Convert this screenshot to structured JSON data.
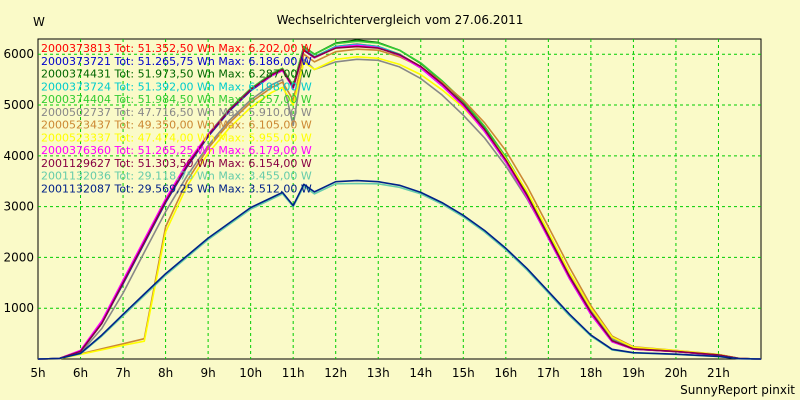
{
  "chart_data": {
    "type": "line",
    "title": "Wechselrichtervergleich vom 27.06.2011",
    "ylabel": "W",
    "footer": "SunnyReport pinxit",
    "ylim": [
      0,
      6300
    ],
    "xlim": [
      5,
      22
    ],
    "x_ticks": [
      5,
      6,
      7,
      8,
      9,
      10,
      11,
      12,
      13,
      14,
      15,
      16,
      17,
      18,
      19,
      20,
      21
    ],
    "x_tick_labels": [
      "5h",
      "6h",
      "7h",
      "8h",
      "9h",
      "10h",
      "11h",
      "12h",
      "13h",
      "14h",
      "15h",
      "16h",
      "17h",
      "18h",
      "19h",
      "20h",
      "21h"
    ],
    "y_ticks": [
      1000,
      2000,
      3000,
      4000,
      5000,
      6000
    ],
    "y_tick_labels": [
      "1000",
      "2000",
      "3000",
      "4000",
      "5000",
      "6000"
    ],
    "grid": true,
    "legend_position": "top-left",
    "series": [
      {
        "name": "2000373813 Tot: 51.352,50 Wh Max: 6.202,00 W",
        "color": "#ff0000",
        "x": [
          5,
          5.5,
          6,
          6.5,
          7,
          7.5,
          8,
          8.5,
          9,
          9.5,
          10,
          10.5,
          10.75,
          11,
          11.25,
          11.5,
          12,
          12.5,
          13,
          13.5,
          14,
          14.5,
          15,
          15.5,
          16,
          16.5,
          17,
          17.5,
          18,
          18.5,
          19,
          20,
          21,
          21.5,
          22
        ],
        "y": [
          0,
          10,
          150,
          700,
          1500,
          2300,
          3100,
          3800,
          4400,
          4900,
          5300,
          5600,
          5700,
          5350,
          6100,
          5950,
          6150,
          6200,
          6150,
          6000,
          5750,
          5400,
          5000,
          4500,
          3900,
          3200,
          2400,
          1600,
          900,
          350,
          200,
          150,
          80,
          10,
          0
        ]
      },
      {
        "name": "2000373721 Tot: 51.265,75 Wh Max: 6.186,00 W",
        "color": "#0000cc",
        "x": [
          5,
          5.5,
          6,
          6.5,
          7,
          7.5,
          8,
          8.5,
          9,
          9.5,
          10,
          10.5,
          10.75,
          11,
          11.25,
          11.5,
          12,
          12.5,
          13,
          13.5,
          14,
          14.5,
          15,
          15.5,
          16,
          16.5,
          17,
          17.5,
          18,
          18.5,
          19,
          20,
          21,
          21.5,
          22
        ],
        "y": [
          0,
          10,
          150,
          700,
          1480,
          2280,
          3080,
          3780,
          4380,
          4880,
          5280,
          5580,
          5680,
          5330,
          6080,
          5930,
          6130,
          6180,
          6130,
          5980,
          5730,
          5380,
          4980,
          4480,
          3880,
          3180,
          2380,
          1580,
          880,
          340,
          195,
          145,
          75,
          10,
          0
        ]
      },
      {
        "name": "2000374431 Tot: 51.973,50 Wh Max: 6.287,00 W",
        "color": "#006600",
        "x": [
          5,
          5.5,
          6,
          6.5,
          7,
          7.5,
          8,
          8.5,
          9,
          9.5,
          10,
          10.5,
          10.75,
          11,
          11.25,
          11.5,
          12,
          12.5,
          13,
          13.5,
          14,
          14.5,
          15,
          15.5,
          16,
          16.5,
          17,
          17.5,
          18,
          18.5,
          19,
          20,
          21,
          21.5,
          22
        ],
        "y": [
          0,
          10,
          160,
          720,
          1520,
          2320,
          3120,
          3820,
          4420,
          4920,
          5320,
          5620,
          5720,
          5380,
          6150,
          6000,
          6220,
          6280,
          6230,
          6080,
          5820,
          5470,
          5070,
          4570,
          3970,
          3270,
          2470,
          1650,
          930,
          370,
          210,
          160,
          85,
          10,
          0
        ]
      },
      {
        "name": "2000373724 Tot: 51.392,00 Wh Max: 6.198,00 W",
        "color": "#00cccc",
        "x": [
          5,
          5.5,
          6,
          6.5,
          7,
          7.5,
          8,
          8.5,
          9,
          9.5,
          10,
          10.5,
          10.75,
          11,
          11.25,
          11.5,
          12,
          12.5,
          13,
          13.5,
          14,
          14.5,
          15,
          15.5,
          16,
          16.5,
          17,
          17.5,
          18,
          18.5,
          19,
          20,
          21,
          21.5,
          22
        ],
        "y": [
          0,
          10,
          150,
          700,
          1500,
          2300,
          3100,
          3800,
          4400,
          4900,
          5300,
          5600,
          5700,
          5350,
          6100,
          5950,
          6150,
          6195,
          6150,
          6000,
          5750,
          5400,
          5000,
          4500,
          3900,
          3200,
          2400,
          1600,
          900,
          350,
          200,
          150,
          80,
          10,
          0
        ]
      },
      {
        "name": "2000374404 Tot: 51.984,50 Wh Max: 6.257,00 W",
        "color": "#33cc33",
        "x": [
          5,
          5.5,
          6,
          6.5,
          7,
          7.5,
          8,
          8.5,
          9,
          9.5,
          10,
          10.5,
          10.75,
          11,
          11.25,
          11.5,
          12,
          12.5,
          13,
          13.5,
          14,
          14.5,
          15,
          15.5,
          16,
          16.5,
          17,
          17.5,
          18,
          18.5,
          19,
          20,
          21,
          21.5,
          22
        ],
        "y": [
          0,
          10,
          160,
          720,
          1520,
          2320,
          3120,
          3820,
          4420,
          4920,
          5320,
          5620,
          5720,
          5380,
          6140,
          6000,
          6210,
          6255,
          6220,
          6080,
          5830,
          5480,
          5080,
          4580,
          3980,
          3280,
          2480,
          1660,
          940,
          380,
          215,
          160,
          85,
          10,
          0
        ]
      },
      {
        "name": "2000502737 Tot: 47.716,50 Wh Max: 5.910,00 W",
        "color": "#888888",
        "x": [
          5,
          5.5,
          6,
          6.5,
          7,
          7.5,
          8,
          8.5,
          9,
          9.5,
          10,
          10.5,
          10.75,
          11,
          11.25,
          11.5,
          12,
          12.5,
          13,
          13.5,
          14,
          14.5,
          15,
          15.5,
          16,
          16.5,
          17,
          17.5,
          18,
          18.5,
          19,
          20,
          21,
          21.5,
          22
        ],
        "y": [
          0,
          5,
          120,
          600,
          1300,
          2100,
          2900,
          3600,
          4200,
          4700,
          5100,
          5400,
          5500,
          4600,
          5900,
          5700,
          5850,
          5900,
          5880,
          5750,
          5520,
          5200,
          4800,
          4350,
          3800,
          3150,
          2400,
          1650,
          950,
          400,
          220,
          160,
          85,
          10,
          0
        ]
      },
      {
        "name": "2000523437 Tot: 49.350,00 Wh Max: 6.105,00 W",
        "color": "#cc8833",
        "x": [
          5,
          5.5,
          6,
          6.5,
          7,
          7.5,
          8,
          8.5,
          9,
          9.5,
          10,
          10.5,
          10.75,
          11,
          11.25,
          11.5,
          12,
          12.5,
          13,
          13.5,
          14,
          14.5,
          15,
          15.5,
          16,
          16.5,
          17,
          17.5,
          18,
          18.5,
          19,
          20,
          21,
          21.5,
          22
        ],
        "y": [
          0,
          5,
          100,
          200,
          300,
          400,
          2600,
          3500,
          4150,
          4650,
          5050,
          5350,
          5450,
          5100,
          6000,
          5850,
          6050,
          6100,
          6080,
          5950,
          5750,
          5450,
          5100,
          4650,
          4100,
          3400,
          2600,
          1800,
          1050,
          450,
          240,
          170,
          90,
          10,
          0
        ]
      },
      {
        "name": "2000523337 Tot: 47.474,00 Wh Max: 5.955,00 W",
        "color": "#ffff00",
        "x": [
          5,
          5.5,
          6,
          6.5,
          7,
          7.5,
          8,
          8.5,
          9,
          9.5,
          10,
          10.5,
          10.75,
          11,
          11.25,
          11.5,
          12,
          12.5,
          13,
          13.5,
          14,
          14.5,
          15,
          15.5,
          16,
          16.5,
          17,
          17.5,
          18,
          18.5,
          19,
          20,
          21,
          21.5,
          22
        ],
        "y": [
          0,
          5,
          90,
          180,
          270,
          350,
          2500,
          3400,
          4050,
          4550,
          4950,
          5250,
          5350,
          5000,
          5850,
          5700,
          5900,
          5950,
          5920,
          5800,
          5600,
          5300,
          4950,
          4500,
          3950,
          3300,
          2500,
          1700,
          1000,
          430,
          230,
          165,
          88,
          10,
          0
        ]
      },
      {
        "name": "2000376360 Tot: 51.265,25 Wh Max: 6.179,00 W",
        "color": "#ff00ff",
        "x": [
          5,
          5.5,
          6,
          6.5,
          7,
          7.5,
          8,
          8.5,
          9,
          9.5,
          10,
          10.5,
          10.75,
          11,
          11.25,
          11.5,
          12,
          12.5,
          13,
          13.5,
          14,
          14.5,
          15,
          15.5,
          16,
          16.5,
          17,
          17.5,
          18,
          18.5,
          19,
          20,
          21,
          21.5,
          22
        ],
        "y": [
          0,
          10,
          170,
          750,
          1550,
          2350,
          3150,
          3850,
          4420,
          4900,
          5300,
          5580,
          5680,
          5330,
          6080,
          5930,
          6130,
          6175,
          6130,
          5980,
          5730,
          5380,
          4980,
          4480,
          3880,
          3180,
          2380,
          1580,
          880,
          340,
          195,
          145,
          75,
          10,
          0
        ]
      },
      {
        "name": "2001129627 Tot: 51.303,50 Wh Max: 6.154,00 W",
        "color": "#880044",
        "x": [
          5,
          5.5,
          6,
          6.5,
          7,
          7.5,
          8,
          8.5,
          9,
          9.5,
          10,
          10.5,
          10.75,
          11,
          11.25,
          11.5,
          12,
          12.5,
          13,
          13.5,
          14,
          14.5,
          15,
          15.5,
          16,
          16.5,
          17,
          17.5,
          18,
          18.5,
          19,
          20,
          21,
          21.5,
          22
        ],
        "y": [
          0,
          10,
          150,
          700,
          1500,
          2300,
          3100,
          3800,
          4400,
          4900,
          5300,
          5600,
          5700,
          5350,
          6080,
          5940,
          6120,
          6150,
          6120,
          5990,
          5760,
          5420,
          5020,
          4520,
          3920,
          3220,
          2420,
          1620,
          920,
          360,
          200,
          150,
          80,
          10,
          0
        ]
      },
      {
        "name": "2001132036 Tot: 29.118,75 Wh Max: 3.455,00 W",
        "color": "#66ccaa",
        "x": [
          5,
          5.5,
          6,
          6.5,
          7,
          7.5,
          8,
          8.5,
          9,
          9.5,
          10,
          10.5,
          10.75,
          11,
          11.25,
          11.5,
          12,
          12.5,
          13,
          13.5,
          14,
          14.5,
          15,
          15.5,
          16,
          16.5,
          17,
          17.5,
          18,
          18.5,
          19,
          20,
          21,
          21.5,
          22
        ],
        "y": [
          0,
          10,
          100,
          450,
          850,
          1250,
          1650,
          2000,
          2350,
          2650,
          2950,
          3150,
          3250,
          3000,
          3400,
          3250,
          3450,
          3455,
          3450,
          3380,
          3250,
          3050,
          2800,
          2500,
          2150,
          1750,
          1300,
          850,
          450,
          180,
          120,
          90,
          50,
          5,
          0
        ]
      },
      {
        "name": "2001132087 Tot: 29.569,25 Wh Max: 3.512,00 W",
        "color": "#002288",
        "x": [
          5,
          5.5,
          6,
          6.5,
          7,
          7.5,
          8,
          8.5,
          9,
          9.5,
          10,
          10.5,
          10.75,
          11,
          11.25,
          11.5,
          12,
          12.5,
          13,
          13.5,
          14,
          14.5,
          15,
          15.5,
          16,
          16.5,
          17,
          17.5,
          18,
          18.5,
          19,
          20,
          21,
          21.5,
          22
        ],
        "y": [
          0,
          10,
          110,
          470,
          880,
          1280,
          1680,
          2030,
          2380,
          2680,
          2980,
          3180,
          3280,
          3020,
          3440,
          3290,
          3490,
          3512,
          3490,
          3420,
          3280,
          3080,
          2830,
          2530,
          2180,
          1780,
          1330,
          880,
          470,
          190,
          125,
          95,
          52,
          5,
          0
        ]
      }
    ]
  }
}
